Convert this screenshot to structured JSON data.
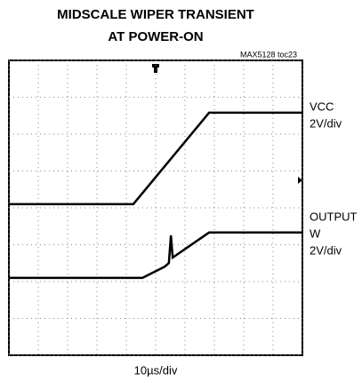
{
  "chart_data": {
    "type": "line",
    "title_lines": [
      "MIDSCALE WIPER TRANSIENT",
      "AT POWER-ON"
    ],
    "note": "MAX5128 toc23",
    "xlabel": "10µs/div",
    "xlim": [
      0,
      10
    ],
    "xticks": [
      0,
      1,
      2,
      3,
      4,
      5,
      6,
      7,
      8,
      9,
      10
    ],
    "ylim": [
      0,
      8
    ],
    "yticks": [
      0,
      1,
      2,
      3,
      4,
      5,
      6,
      7,
      8
    ],
    "grid": true,
    "series": [
      {
        "label": [
          "VCC"
        ],
        "scale": "2V/div",
        "color": "#000000",
        "x": [
          0,
          4.24,
          6.82,
          10
        ],
        "values": [
          4.1,
          4.1,
          6.58,
          6.58
        ]
      },
      {
        "label": [
          "OUTPUT",
          "W"
        ],
        "scale": "2V/div",
        "color": "#000000",
        "x": [
          0,
          4.55,
          5.3,
          5.45,
          5.52,
          5.58,
          6.82,
          10
        ],
        "values": [
          2.1,
          2.1,
          2.4,
          2.5,
          3.25,
          2.65,
          3.33,
          3.33
        ]
      }
    ]
  }
}
